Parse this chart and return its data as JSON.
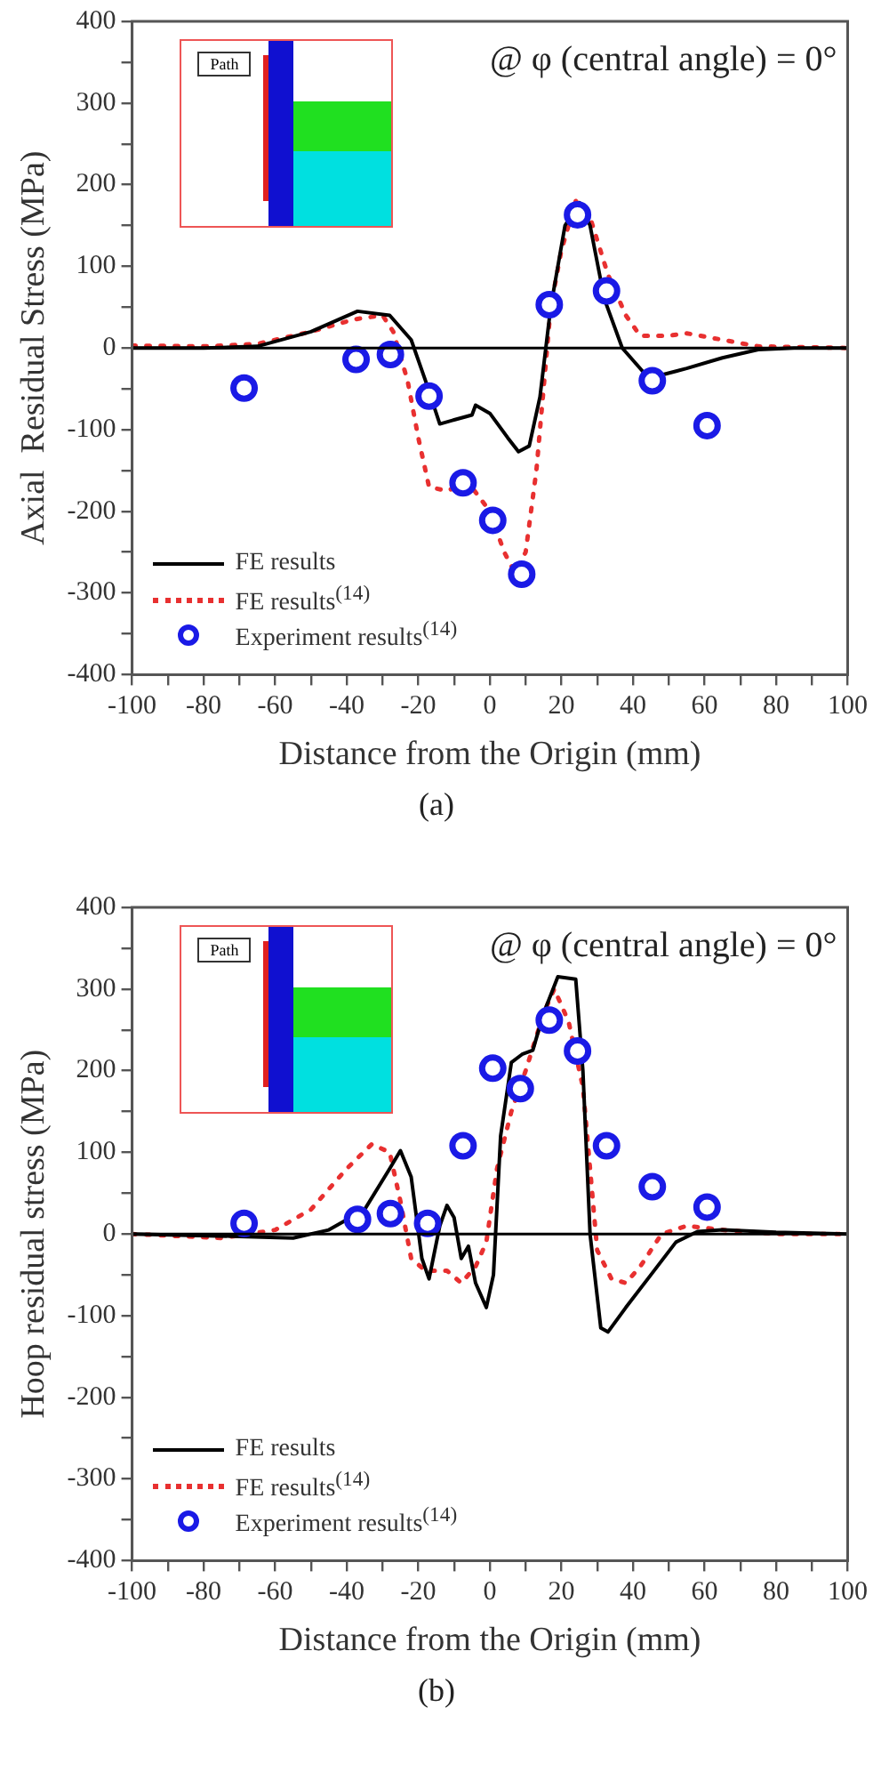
{
  "chart_data": [
    {
      "type": "line",
      "xlabel": "Distance from the Origin (mm)",
      "ylabel": "Axial  Residual Stress (MPa)",
      "annotations": [
        "@ φ (central angle) = 0°",
        "Path",
        "(a)"
      ],
      "xlim": [
        -100,
        100
      ],
      "xticks": [
        -100,
        {
          "value": -90,
          "label": null
        },
        -80,
        {
          "value": -70,
          "label": null
        },
        -60,
        {
          "value": -50,
          "label": null
        },
        -40,
        {
          "value": -30,
          "label": null
        },
        -20,
        {
          "value": -10,
          "label": null
        },
        0,
        {
          "value": 10,
          "label": null
        },
        20,
        {
          "value": 30,
          "label": null
        },
        40,
        {
          "value": 50,
          "label": null
        },
        60,
        {
          "value": 70,
          "label": null
        },
        80,
        {
          "value": 90,
          "label": null
        },
        100
      ],
      "ylim": [
        -400,
        400
      ],
      "yticks": [
        -400,
        {
          "value": -350,
          "label": null
        },
        -300,
        {
          "value": -250,
          "label": null
        },
        -200,
        {
          "value": -150,
          "label": null
        },
        -100,
        {
          "value": -50,
          "label": null
        },
        0,
        {
          "value": 50,
          "label": null
        },
        100,
        {
          "value": 150,
          "label": null
        },
        200,
        {
          "value": 250,
          "label": null
        },
        300,
        {
          "value": 350,
          "label": null
        },
        400
      ],
      "grid": false,
      "legend": "bottom left",
      "ref_lines": [
        {
          "axis": "y",
          "value": 0,
          "color": "#000000"
        }
      ],
      "series": [
        {
          "name": "FE results",
          "type": "line",
          "color": "#000000",
          "line_style": "solid",
          "marker": "none",
          "x": [
            -100,
            -80,
            -65,
            -50,
            -37,
            -28,
            -22,
            -18,
            -14,
            -10,
            -5,
            -4,
            0,
            5,
            8,
            11,
            14,
            17,
            21,
            25,
            28,
            32,
            37,
            43,
            48,
            55,
            65,
            75,
            85,
            100
          ],
          "values": [
            0,
            0,
            2,
            20,
            45,
            40,
            10,
            -40,
            -93,
            -88,
            -82,
            -70,
            -80,
            -110,
            -127,
            -120,
            -60,
            50,
            150,
            178,
            150,
            60,
            0,
            -30,
            -33,
            -25,
            -12,
            -2,
            0,
            0
          ]
        },
        {
          "name": "FE results$^{(14)}$",
          "type": "line",
          "color": "#e83030",
          "line_style": "dotted",
          "marker": "none",
          "x": [
            -100,
            -80,
            -65,
            -50,
            -38,
            -30,
            -27,
            -23,
            -20,
            -17,
            -12,
            -6,
            0,
            4,
            7,
            10,
            13,
            15,
            17,
            20,
            24,
            28,
            33,
            38,
            42,
            50,
            55,
            65,
            75,
            100
          ],
          "values": [
            3,
            2,
            5,
            20,
            35,
            40,
            20,
            -40,
            -110,
            -170,
            -175,
            -165,
            -200,
            -250,
            -275,
            -250,
            -150,
            -50,
            50,
            120,
            180,
            160,
            90,
            40,
            15,
            15,
            18,
            10,
            2,
            0
          ]
        },
        {
          "name": "Experiment results$^{(14)}$",
          "type": "scatter",
          "color": "#1a1ae6",
          "marker": "circle",
          "x": [
            -68.7,
            -37.4,
            -27.8,
            -17,
            -7.5,
            0.8,
            8.9,
            16.6,
            24.5,
            32.6,
            45.4,
            60.7
          ],
          "values": [
            -49,
            -14,
            -8,
            -59,
            -165,
            -211,
            -277,
            53,
            163,
            70,
            -40,
            -95
          ]
        }
      ]
    },
    {
      "type": "line",
      "xlabel": "Distance from the Origin (mm)",
      "ylabel": "Hoop residual stress (MPa)",
      "annotations": [
        "@ φ (central angle) = 0°",
        "Path",
        "(b)"
      ],
      "xlim": [
        -100,
        100
      ],
      "xticks": [
        -100,
        {
          "value": -90,
          "label": null
        },
        -80,
        {
          "value": -70,
          "label": null
        },
        -60,
        {
          "value": -50,
          "label": null
        },
        -40,
        {
          "value": -30,
          "label": null
        },
        -20,
        {
          "value": -10,
          "label": null
        },
        0,
        {
          "value": 10,
          "label": null
        },
        20,
        {
          "value": 30,
          "label": null
        },
        40,
        {
          "value": 50,
          "label": null
        },
        60,
        {
          "value": 70,
          "label": null
        },
        80,
        {
          "value": 90,
          "label": null
        },
        100
      ],
      "ylim": [
        -400,
        400
      ],
      "yticks": [
        -400,
        {
          "value": -350,
          "label": null
        },
        -300,
        {
          "value": -250,
          "label": null
        },
        -200,
        {
          "value": -150,
          "label": null
        },
        -100,
        {
          "value": -50,
          "label": null
        },
        0,
        {
          "value": 50,
          "label": null
        },
        100,
        {
          "value": 150,
          "label": null
        },
        200,
        {
          "value": 250,
          "label": null
        },
        300,
        {
          "value": 350,
          "label": null
        },
        400
      ],
      "grid": false,
      "legend": "bottom left",
      "ref_lines": [
        {
          "axis": "y",
          "value": 0,
          "color": "#000000"
        }
      ],
      "series": [
        {
          "name": "FE results",
          "type": "line",
          "color": "#000000",
          "line_style": "solid",
          "marker": "none",
          "x": [
            -100,
            -70,
            -55,
            -45,
            -35,
            -28,
            -25,
            -22,
            -19,
            -17,
            -14,
            -12,
            -10,
            -8,
            -6,
            -4,
            -1,
            1,
            3,
            6,
            9,
            12,
            15,
            19,
            24,
            26,
            28,
            31,
            33,
            38,
            45,
            52,
            58,
            65,
            80,
            100
          ],
          "values": [
            0,
            -3,
            -5,
            5,
            30,
            80,
            102,
            70,
            -30,
            -55,
            10,
            35,
            20,
            -30,
            -15,
            -60,
            -90,
            -50,
            120,
            210,
            220,
            225,
            270,
            315,
            312,
            200,
            0,
            -115,
            -120,
            -90,
            -50,
            -10,
            3,
            5,
            2,
            0
          ]
        },
        {
          "name": "FE results$^{(14)}$",
          "type": "line",
          "color": "#e83030",
          "line_style": "dotted",
          "marker": "none",
          "x": [
            -100,
            -85,
            -75,
            -60,
            -50,
            -40,
            -33,
            -28,
            -25,
            -22,
            -18,
            -12,
            -8,
            -4,
            -1,
            2,
            6,
            10,
            15,
            18,
            22,
            26,
            30,
            34,
            38,
            42,
            48,
            55,
            65,
            80,
            100
          ],
          "values": [
            0,
            -3,
            -5,
            5,
            30,
            80,
            110,
            100,
            40,
            -30,
            -45,
            -45,
            -60,
            -40,
            -10,
            80,
            150,
            200,
            270,
            300,
            260,
            180,
            -20,
            -55,
            -60,
            -40,
            0,
            10,
            5,
            0,
            0
          ]
        },
        {
          "name": "Experiment results$^{(14)}$",
          "type": "scatter",
          "color": "#1a1ae6",
          "marker": "circle",
          "x": [
            -68.7,
            -37,
            -27.8,
            -17.4,
            -7.5,
            0.8,
            8.5,
            16.6,
            24.5,
            32.6,
            45.4,
            60.7
          ],
          "values": [
            13,
            18,
            25,
            13,
            108,
            203,
            178,
            262,
            224,
            108,
            58,
            33
          ]
        }
      ]
    }
  ]
}
